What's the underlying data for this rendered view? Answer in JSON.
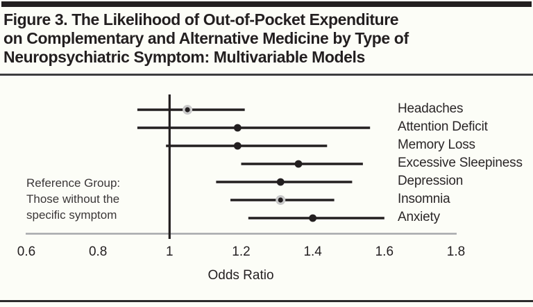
{
  "figure": {
    "title_lines": [
      "Figure 3. The Likelihood of Out-of-Pocket Expenditure",
      "on Complementary and Alternative Medicine by Type of",
      "Neuropsychiatric Symptom: Multivariable Models"
    ],
    "reference_note_lines": [
      "Reference Group:",
      "Those without the",
      "specific symptom"
    ]
  },
  "chart_data": {
    "type": "scatter",
    "subtype": "forest-plot",
    "title": "Figure 3. The Likelihood of Out-of-Pocket Expenditure on Complementary and Alternative Medicine by Type of Neuropsychiatric Symptom: Multivariable Models",
    "xlabel": "Odds Ratio",
    "xlim": [
      0.6,
      1.8
    ],
    "x_ticks": [
      0.6,
      0.8,
      1.0,
      1.2,
      1.4,
      1.6,
      1.8
    ],
    "x_tick_labels": [
      "0.6",
      "0.8",
      "1",
      "1.2",
      "1.4",
      "1.6",
      "1.8"
    ],
    "reference_line_x": 1.0,
    "grid": false,
    "legend_position": "none",
    "series": [
      {
        "label": "Headaches",
        "odds_ratio": 1.05,
        "ci_low": 0.91,
        "ci_high": 1.21,
        "marker": "shaded"
      },
      {
        "label": "Attention Deficit",
        "odds_ratio": 1.19,
        "ci_low": 0.91,
        "ci_high": 1.56,
        "marker": "solid"
      },
      {
        "label": "Memory Loss",
        "odds_ratio": 1.19,
        "ci_low": 0.99,
        "ci_high": 1.44,
        "marker": "solid"
      },
      {
        "label": "Excessive Sleepiness",
        "odds_ratio": 1.36,
        "ci_low": 1.2,
        "ci_high": 1.54,
        "marker": "solid"
      },
      {
        "label": "Depression",
        "odds_ratio": 1.31,
        "ci_low": 1.13,
        "ci_high": 1.51,
        "marker": "solid"
      },
      {
        "label": "Insomnia",
        "odds_ratio": 1.31,
        "ci_low": 1.17,
        "ci_high": 1.46,
        "marker": "shaded"
      },
      {
        "label": "Anxiety",
        "odds_ratio": 1.4,
        "ci_low": 1.22,
        "ci_high": 1.6,
        "marker": "solid"
      }
    ],
    "colors": {
      "ink": "#231f20",
      "axis_line": "#a6a8ab",
      "shaded_marker_ring": "#c9c9c9"
    }
  }
}
